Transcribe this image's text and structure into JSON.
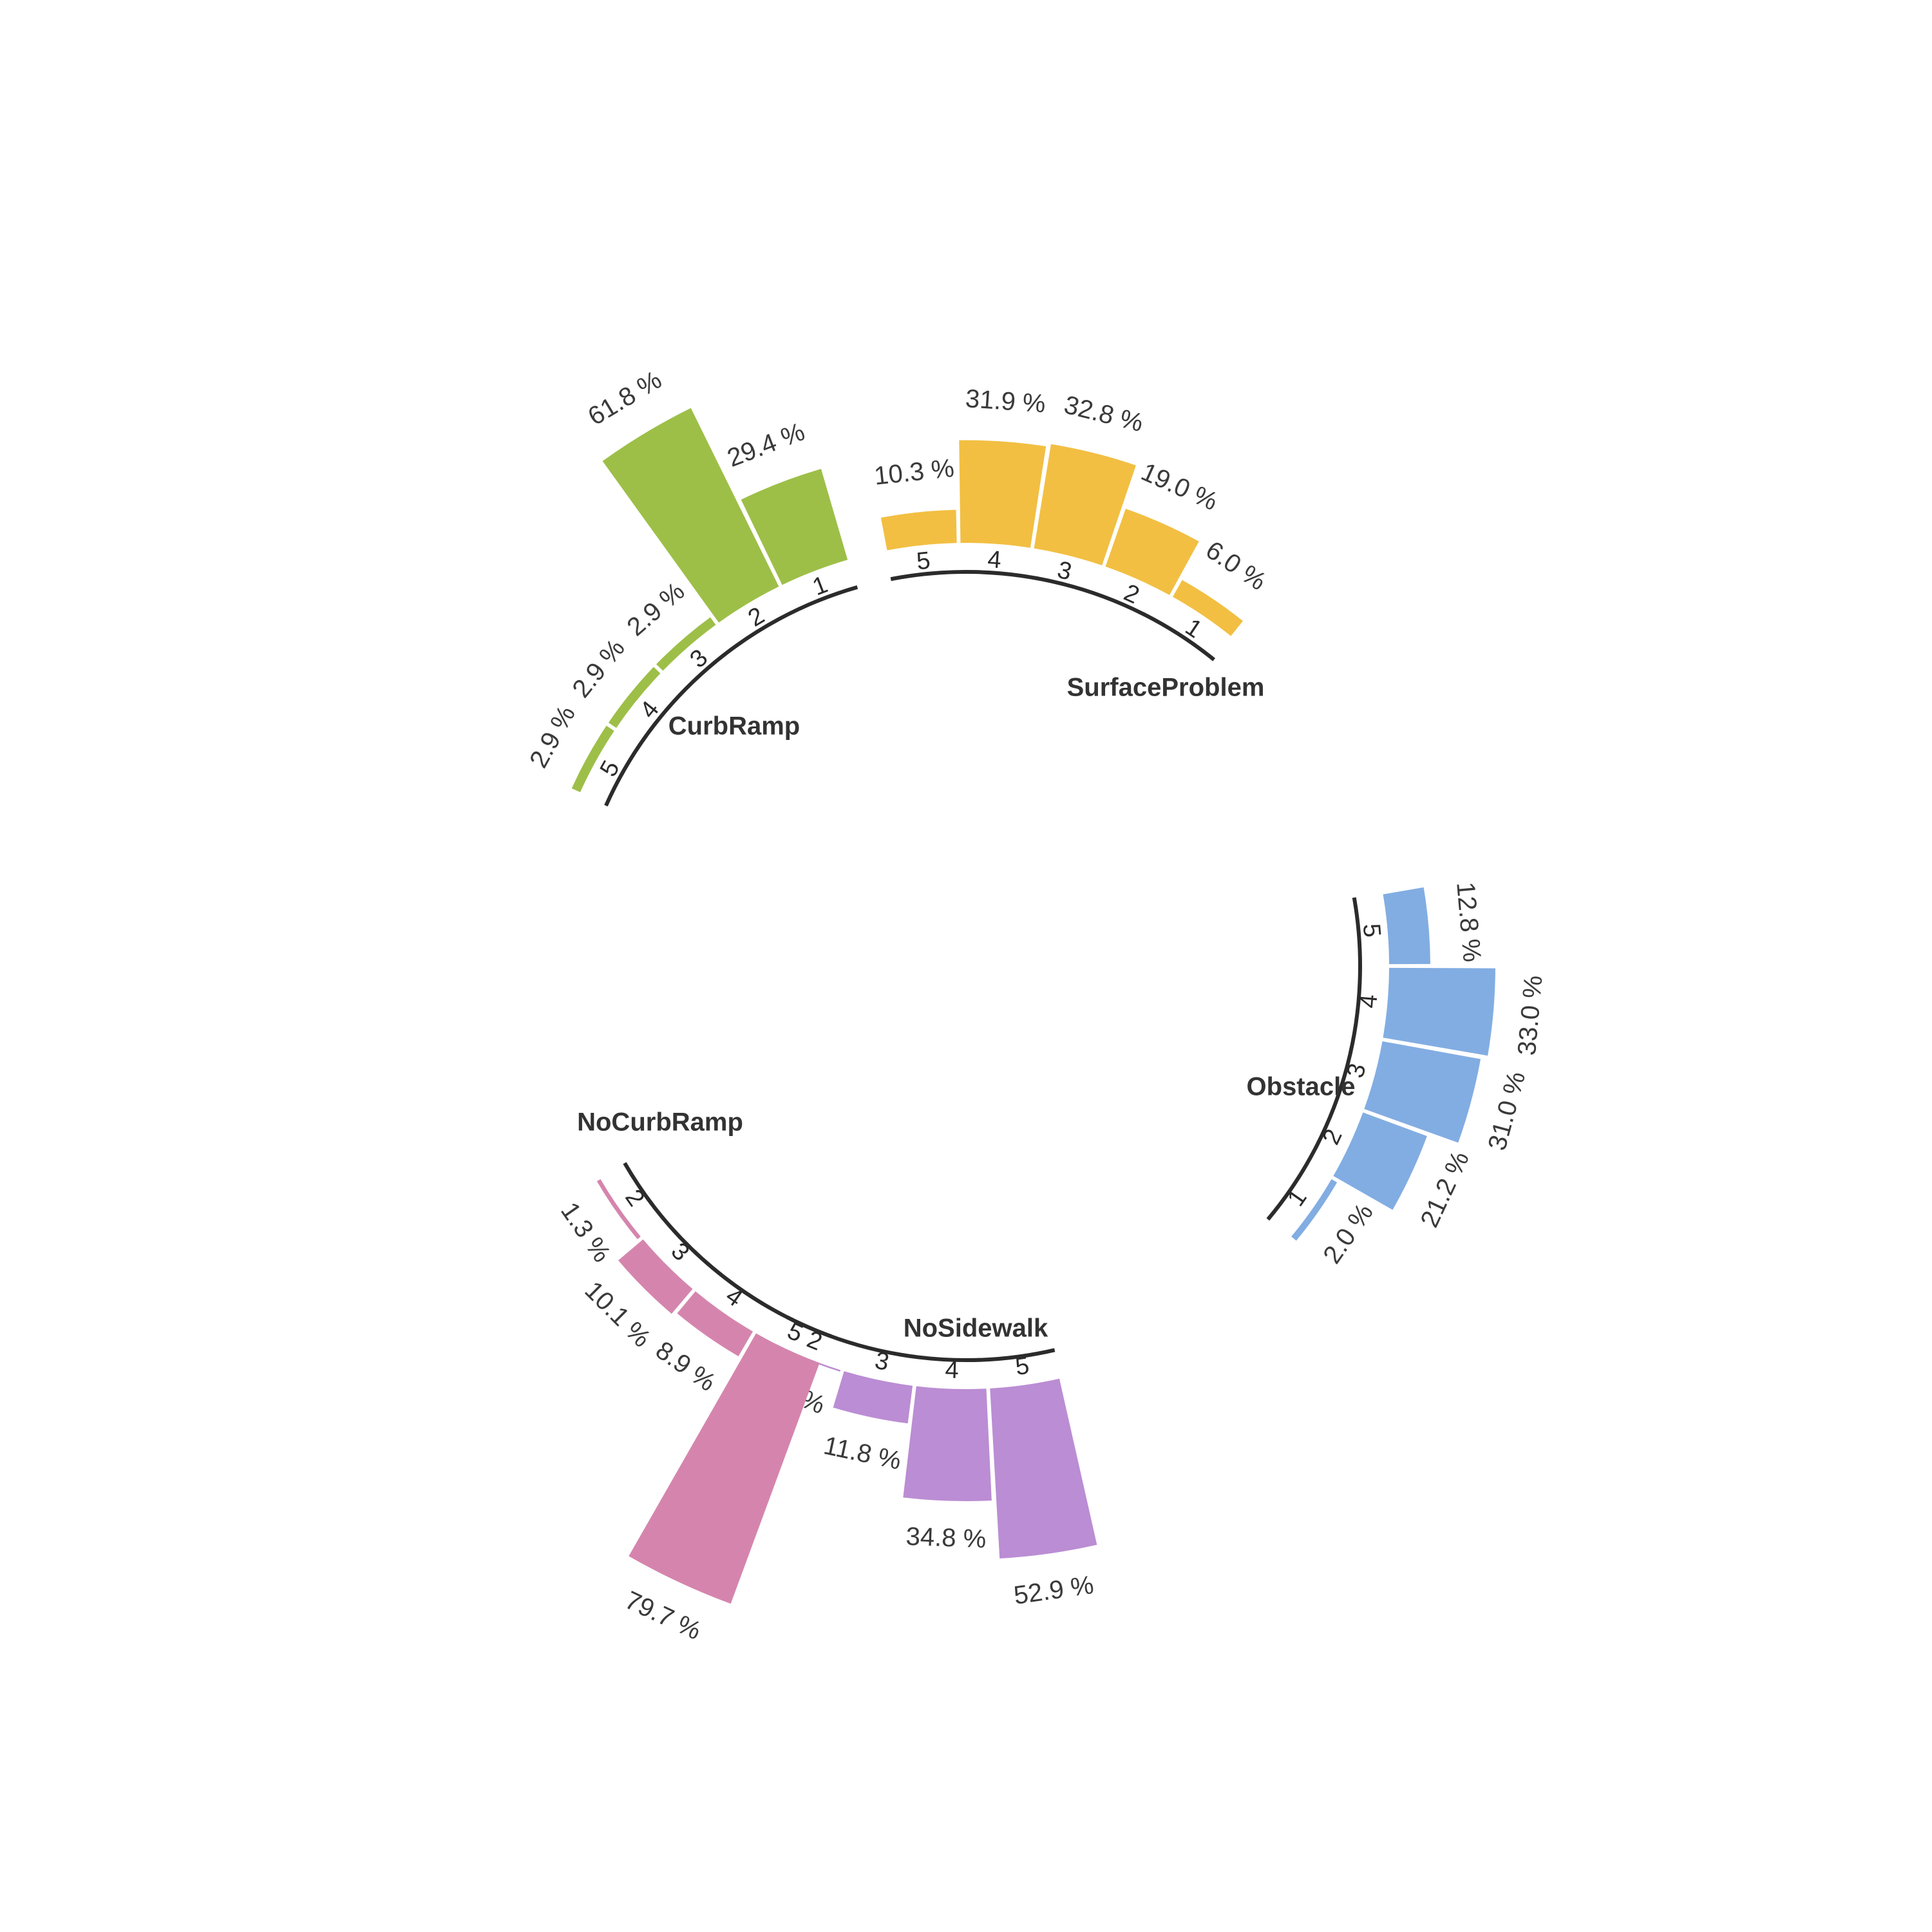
{
  "chart_data": {
    "type": "bar",
    "polar": true,
    "title": "",
    "value_unit": " %",
    "groups": [
      {
        "name": "CurbRamp",
        "color": "#9dbf48",
        "categories": [
          "1",
          "2",
          "3",
          "4",
          "5"
        ],
        "values": [
          29.4,
          61.8,
          2.9,
          2.9,
          2.9
        ]
      },
      {
        "name": "SurfaceProblem",
        "color": "#f2bf42",
        "categories": [
          "1",
          "2",
          "3",
          "4",
          "5"
        ],
        "values": [
          6.0,
          19.0,
          32.8,
          31.9,
          10.3
        ]
      },
      {
        "name": "Obstacle",
        "color": "#82ade2",
        "categories": [
          "1",
          "2",
          "3",
          "4",
          "5"
        ],
        "values": [
          2.0,
          21.2,
          31.0,
          33.0,
          12.8
        ]
      },
      {
        "name": "NoSidewalk",
        "color": "#bb8dd4",
        "categories": [
          "2",
          "3",
          "4",
          "5"
        ],
        "values": [
          0.5,
          11.8,
          34.8,
          52.9
        ]
      },
      {
        "name": "NoCurbRamp",
        "color": "#d585ad",
        "categories": [
          "2",
          "3",
          "4",
          "5"
        ],
        "values": [
          1.3,
          10.1,
          8.9,
          79.7
        ]
      }
    ]
  }
}
